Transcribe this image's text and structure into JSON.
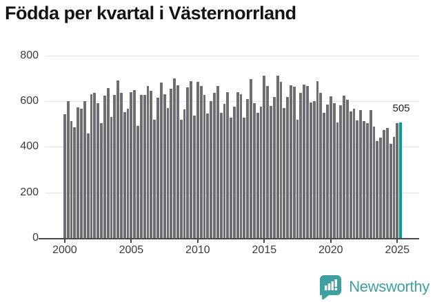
{
  "title": "Födda per kvartal i Västernorrland",
  "chart_data": {
    "type": "bar",
    "title": "Födda per kvartal i Västernorrland",
    "x_start": "2000 Q1",
    "x_end": "2025 Q2",
    "quarters_per_year": 4,
    "x_tick_labels": [
      "2000",
      "2005",
      "2010",
      "2015",
      "2020",
      "2025"
    ],
    "x_tick_bar_step": 20,
    "y_tick_labels": [
      "0",
      "200",
      "400",
      "600",
      "800"
    ],
    "y_ticks": [
      0,
      200,
      400,
      600,
      800
    ],
    "y_gridlines": [
      200,
      400,
      600,
      800
    ],
    "ylim": [
      0,
      800
    ],
    "grid": "horizontal",
    "legend": "none",
    "values": [
      544,
      599,
      512,
      486,
      574,
      568,
      600,
      459,
      630,
      635,
      592,
      502,
      625,
      657,
      530,
      626,
      690,
      637,
      552,
      567,
      640,
      647,
      492,
      627,
      627,
      667,
      645,
      520,
      615,
      680,
      630,
      570,
      655,
      700,
      670,
      520,
      565,
      660,
      687,
      537,
      683,
      667,
      627,
      545,
      600,
      637,
      667,
      550,
      587,
      640,
      527,
      575,
      640,
      630,
      527,
      610,
      695,
      590,
      550,
      577,
      710,
      665,
      580,
      617,
      710,
      685,
      570,
      617,
      670,
      663,
      520,
      635,
      673,
      665,
      595,
      600,
      687,
      637,
      550,
      585,
      620,
      590,
      505,
      583,
      625,
      607,
      555,
      567,
      515,
      560,
      512,
      504,
      562,
      487,
      424,
      440,
      474,
      482,
      412,
      444,
      502,
      505
    ],
    "highlight_last": true,
    "highlight_value_label": "505",
    "bar_color": "#6d6d73",
    "highlight_color": "#00a099",
    "gridline_color": "#e2e2e2",
    "axis_color": "#4a4a4a"
  },
  "footer": {
    "brand": "Newsworthy",
    "brand_color": "#3fa0a0",
    "logo_icon": "bar-chart-speech-bubble"
  }
}
